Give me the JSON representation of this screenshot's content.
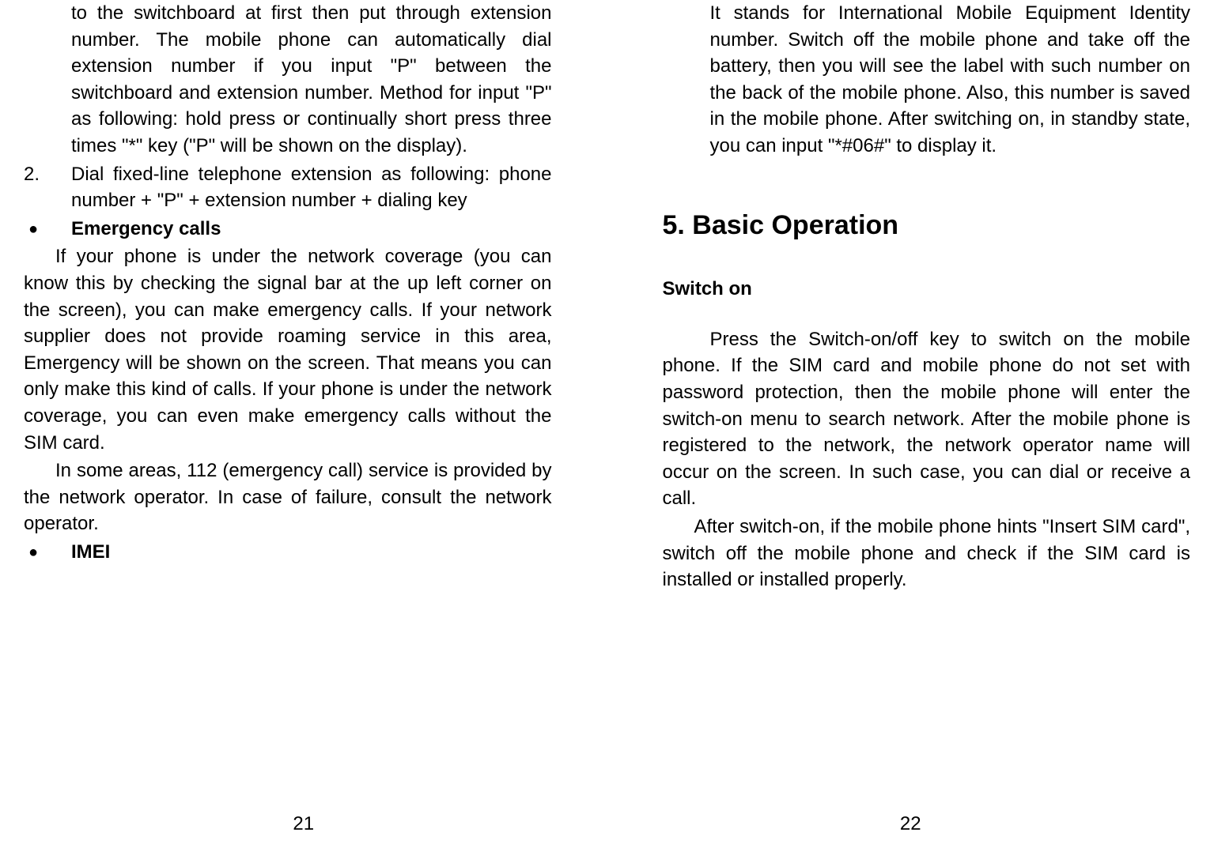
{
  "left": {
    "p1_continuation": "to the switchboard at first then put through extension number. The mobile phone can automatically dial extension number if you input \"P\" between the switchboard and extension number. Method for input \"P\" as following: hold press or continually short press three times \"*\" key (\"P\" will be shown on the display).",
    "item2_num": "2.",
    "item2_text": "Dial fixed-line telephone extension as following: phone number + \"P\" + extension number + dialing key",
    "bullet1_mark": "●",
    "bullet1_text": "Emergency calls",
    "para2": "If your phone is under the network coverage (you can know this by checking the signal bar at the up left corner on the screen), you can make emergency calls. If your network supplier does not provide roaming service in this area, Emergency will be shown on the screen. That means you can only make this kind of calls. If your phone is under the network coverage, you can even make emergency calls without the SIM card.",
    "para3": "In some areas, 112 (emergency call) service is provided by the network operator. In case of failure, consult the network operator.",
    "bullet2_mark": "●",
    "bullet2_text": "IMEI",
    "page_num": "21"
  },
  "right": {
    "p1": "It stands for International Mobile Equipment Identity number. Switch off the mobile phone and take off the battery, then you will see the label with such number on the back of the mobile phone. Also, this number is saved in the mobile phone. After switching on, in standby state, you can input \"*#06#\" to display it.",
    "heading": "5. Basic Operation",
    "subheading": "Switch on",
    "para2": "Press the Switch-on/off key to switch on the mobile phone. If the SIM card and mobile phone do not set with password protection, then the mobile phone will enter the switch-on menu to search network. After the mobile phone is registered to the network, the network operator name will occur on the screen. In such case, you can dial or receive a call.",
    "para3": "After switch-on, if the mobile phone hints \"Insert SIM card\", switch off the mobile phone and check if the SIM card is installed or installed properly.",
    "page_num": "22"
  },
  "colors": {
    "text": "#000000",
    "background": "#ffffff"
  },
  "typography": {
    "body_fontsize": 24,
    "heading_fontsize": 34,
    "font_family": "Arial"
  }
}
